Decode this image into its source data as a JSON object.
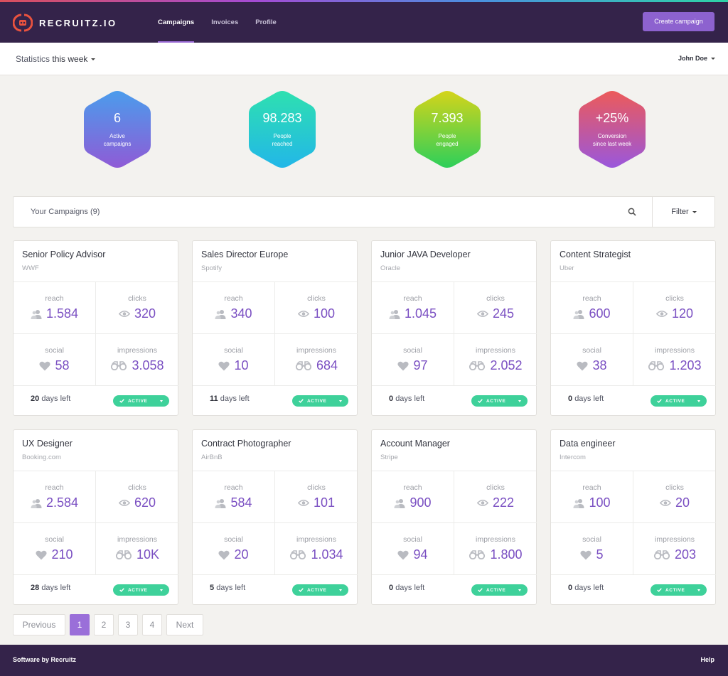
{
  "brand": {
    "name": "RECRUITZ.IO",
    "accent": "#8d62cf",
    "header_bg": "#34234a"
  },
  "nav": {
    "items": [
      "Campaigns",
      "Invoices",
      "Profile"
    ],
    "active": "Campaigns",
    "create_label": "Create campaign"
  },
  "subbar": {
    "statistics": "Statistics",
    "period": "this week",
    "user": "John Doe"
  },
  "stats": [
    {
      "value": "6",
      "label1": "Active",
      "label2": "campaigns",
      "colors": [
        "#4b9cec",
        "#8f5bd6"
      ]
    },
    {
      "value": "98.283",
      "label1": "People",
      "label2": "reached",
      "colors": [
        "#2ee0b0",
        "#22b7e8"
      ]
    },
    {
      "value": "7.393",
      "label1": "People",
      "label2": "engaged",
      "colors": [
        "#d4d41a",
        "#2dcf5a"
      ]
    },
    {
      "value": "+25%",
      "label1": "Conversion",
      "label2": "since last week",
      "colors": [
        "#ec5a5a",
        "#9a57dc"
      ]
    }
  ],
  "search": {
    "placeholder": "Your Campaigns (9)",
    "filter_label": "Filter"
  },
  "metric_labels": {
    "reach": "reach",
    "clicks": "clicks",
    "social": "social",
    "impressions": "impressions"
  },
  "status_label": "ACTIVE",
  "days_suffix": "days left",
  "campaigns": [
    {
      "title": "Senior Policy Advisor",
      "company": "WWF",
      "reach": "1.584",
      "clicks": "320",
      "social": "58",
      "impressions": "3.058",
      "days": "20"
    },
    {
      "title": "Sales Director Europe",
      "company": "Spotify",
      "reach": "340",
      "clicks": "100",
      "social": "10",
      "impressions": "684",
      "days": "11"
    },
    {
      "title": "Junior JAVA Developer",
      "company": "Oracle",
      "reach": "1.045",
      "clicks": "245",
      "social": "97",
      "impressions": "2.052",
      "days": "0"
    },
    {
      "title": "Content Strategist",
      "company": "Uber",
      "reach": "600",
      "clicks": "120",
      "social": "38",
      "impressions": "1.203",
      "days": "0"
    },
    {
      "title": "UX Designer",
      "company": "Booking.com",
      "reach": "2.584",
      "clicks": "620",
      "social": "210",
      "impressions": "10K",
      "days": "28"
    },
    {
      "title": "Contract Photographer",
      "company": "AirBnB",
      "reach": "584",
      "clicks": "101",
      "social": "20",
      "impressions": "1.034",
      "days": "5"
    },
    {
      "title": "Account Manager",
      "company": "Stripe",
      "reach": "900",
      "clicks": "222",
      "social": "94",
      "impressions": "1.800",
      "days": "0"
    },
    {
      "title": "Data engineer",
      "company": "Intercom",
      "reach": "100",
      "clicks": "20",
      "social": "5",
      "impressions": "203",
      "days": "0"
    }
  ],
  "pagination": {
    "previous": "Previous",
    "pages": [
      "1",
      "2",
      "3",
      "4"
    ],
    "current": "1",
    "next": "Next"
  },
  "footer": {
    "left": "Software by Recruitz",
    "right": "Help"
  }
}
